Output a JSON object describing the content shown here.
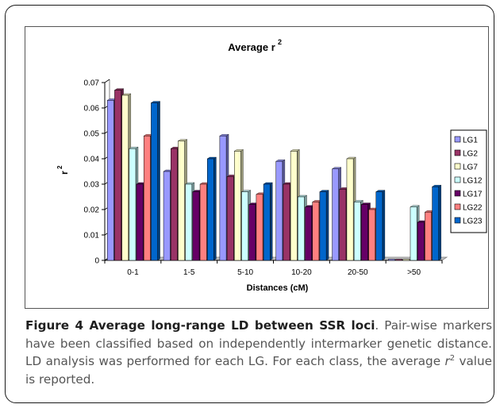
{
  "chart_data": {
    "type": "bar",
    "title": "Average r",
    "title_superscript": "2",
    "xlabel": "Distances (cM)",
    "ylabel": "r",
    "ylabel_superscript": "2",
    "ylim": [
      0,
      0.07
    ],
    "yticks": [
      "0",
      "0.01",
      "0.02",
      "0.03",
      "0.04",
      "0.05",
      "0.06",
      "0.07"
    ],
    "categories": [
      "0-1",
      "1-5",
      "5-10",
      "10-20",
      "20-50",
      ">50"
    ],
    "series": [
      {
        "name": "LG1",
        "color": "#9999ff",
        "values": [
          0.063,
          0.035,
          0.049,
          0.039,
          0.036,
          0.0
        ]
      },
      {
        "name": "LG2",
        "color": "#993366",
        "values": [
          0.067,
          0.044,
          0.033,
          0.03,
          0.028,
          0.0
        ]
      },
      {
        "name": "LG7",
        "color": "#ffffcc",
        "values": [
          0.065,
          0.047,
          0.043,
          0.043,
          0.04,
          0.0
        ]
      },
      {
        "name": "LG12",
        "color": "#ccffff",
        "values": [
          0.044,
          0.03,
          0.027,
          0.025,
          0.023,
          0.021
        ]
      },
      {
        "name": "LG17",
        "color": "#660066",
        "values": [
          0.03,
          0.027,
          0.022,
          0.021,
          0.022,
          0.015
        ]
      },
      {
        "name": "LG22",
        "color": "#ff8080",
        "values": [
          0.049,
          0.03,
          0.026,
          0.023,
          0.02,
          0.019
        ]
      },
      {
        "name": "LG23",
        "color": "#0066cc",
        "values": [
          0.062,
          0.04,
          0.03,
          0.027,
          0.027,
          0.029
        ]
      }
    ],
    "legend_position": "right",
    "grid": false
  },
  "caption": {
    "title": "Figure 4 Average long-range LD between SSR loci",
    "text_1": ". Pair-wise markers have been classified based on independently intermarker genetic distance. LD analysis was performed for each LG. For each class, the average ",
    "r_symbol": "r",
    "r_superscript": "2",
    "text_2": " value is reported."
  }
}
